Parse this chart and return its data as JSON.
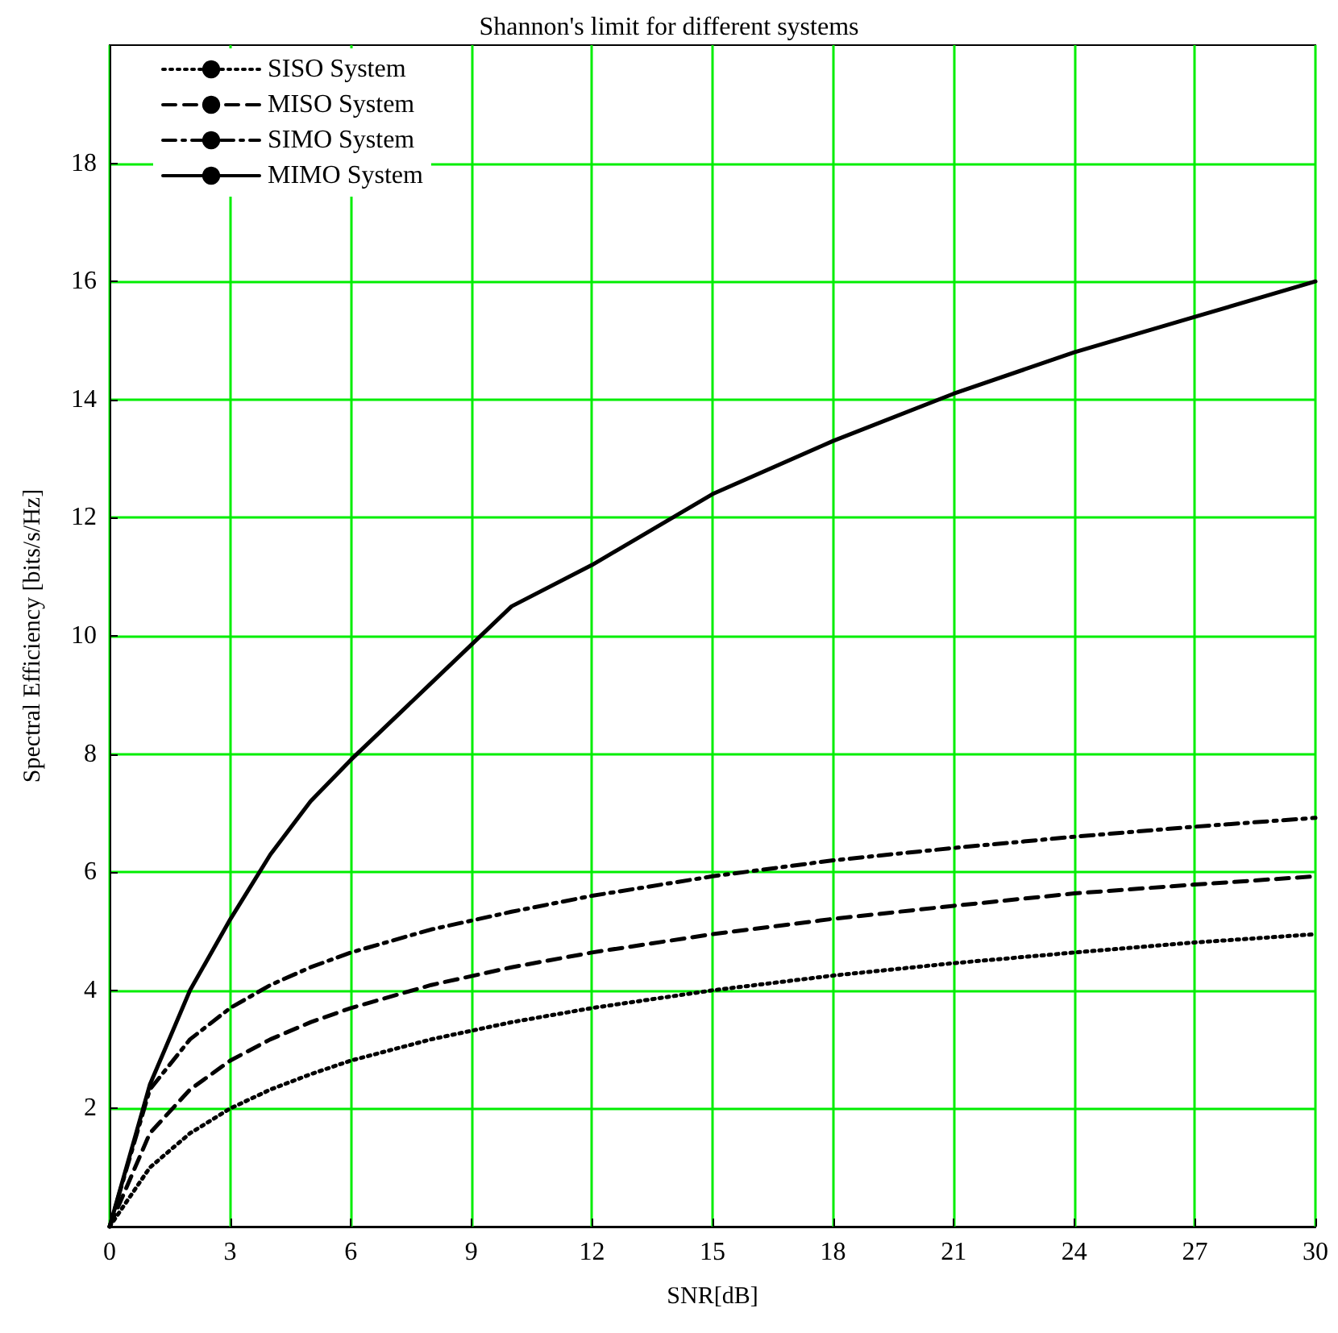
{
  "chart_data": {
    "type": "line",
    "title": "Shannon's limit for different systems",
    "xlabel": "SNR[dB]",
    "ylabel": "Spectral Efficiency [bits/s/Hz]",
    "x": [
      0,
      1,
      2,
      3,
      4,
      5,
      6,
      8,
      10,
      12,
      15,
      18,
      21,
      24,
      27,
      30
    ],
    "series": [
      {
        "name": "SISO System",
        "color": "#000000",
        "line_style": "dotted",
        "values": [
          0,
          1,
          1.58,
          2,
          2.32,
          2.58,
          2.81,
          3.17,
          3.46,
          3.7,
          4,
          4.25,
          4.46,
          4.64,
          4.81,
          4.95
        ]
      },
      {
        "name": "MISO System",
        "color": "#000000",
        "line_style": "dashed",
        "values": [
          0,
          1.58,
          2.32,
          2.81,
          3.17,
          3.46,
          3.7,
          4.09,
          4.39,
          4.64,
          4.95,
          5.21,
          5.43,
          5.64,
          5.79,
          5.93
        ]
      },
      {
        "name": "SIMO System",
        "color": "#000000",
        "line_style": "dashdot",
        "values": [
          0,
          2.32,
          3.17,
          3.7,
          4.09,
          4.39,
          4.64,
          5.03,
          5.33,
          5.6,
          5.93,
          6.2,
          6.41,
          6.6,
          6.77,
          6.92
        ]
      },
      {
        "name": "MIMO System",
        "color": "#000000",
        "line_style": "solid",
        "values": [
          0,
          2.4,
          4.0,
          5.2,
          6.3,
          7.2,
          7.9,
          9.2,
          10.5,
          11.2,
          12.4,
          13.3,
          14.1,
          14.8,
          15.4,
          16
        ]
      }
    ],
    "xlim": [
      0,
      30
    ],
    "xticks": [
      0,
      3,
      6,
      9,
      12,
      15,
      18,
      21,
      24,
      27,
      30
    ],
    "ylim": [
      0,
      20
    ],
    "yticks": [
      2,
      4,
      6,
      8,
      10,
      12,
      14,
      16,
      18
    ],
    "grid": true,
    "legend": "top left",
    "marker": "none"
  }
}
